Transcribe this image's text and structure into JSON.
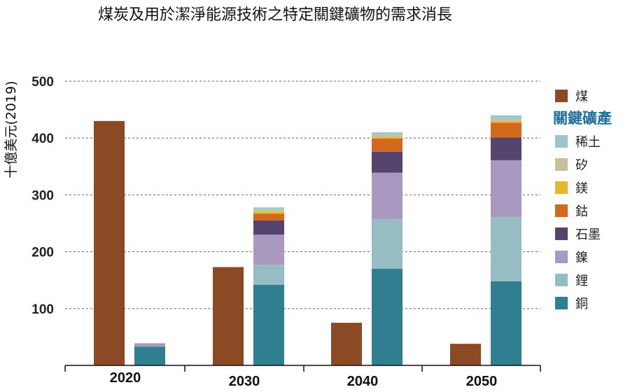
{
  "chart_data": {
    "type": "bar",
    "title": "煤炭及用於潔淨能源技術之特定關鍵礦物的需求消長",
    "ylabel": "十億美元(2019)",
    "xlabel": "",
    "ylim": [
      0,
      500
    ],
    "yticks": [
      100,
      200,
      300,
      400,
      500
    ],
    "grid": true,
    "legend_position": "right",
    "categories": [
      "2020",
      "2030",
      "2040",
      "2050"
    ],
    "coal": {
      "name": "煤",
      "color": "#8b4a24",
      "values": [
        430,
        173,
        75,
        38
      ]
    },
    "legend_heading": "關鍵礦產",
    "minerals": [
      {
        "name": "銅",
        "color": "#2f7f91",
        "values": [
          33,
          142,
          170,
          148
        ]
      },
      {
        "name": "鋰",
        "color": "#96bcc4",
        "values": [
          0,
          35,
          87,
          113
        ]
      },
      {
        "name": "鎳",
        "color": "#a999c0",
        "values": [
          6,
          53,
          82,
          100
        ]
      },
      {
        "name": "石墨",
        "color": "#55456e",
        "values": [
          0,
          25,
          37,
          40
        ]
      },
      {
        "name": "鈷",
        "color": "#d5681f",
        "values": [
          0,
          12,
          23,
          26
        ]
      },
      {
        "name": "鎂",
        "color": "#e8b72a",
        "values": [
          0,
          3,
          3,
          3
        ]
      },
      {
        "name": "矽",
        "color": "#c9bf9c",
        "values": [
          0,
          5,
          4,
          4
        ]
      },
      {
        "name": "稀土",
        "color": "#9bc6d0",
        "values": [
          0,
          3,
          4,
          6
        ]
      }
    ],
    "legend_order": [
      "稀土",
      "矽",
      "鎂",
      "鈷",
      "石墨",
      "鎳",
      "鋰",
      "銅"
    ]
  }
}
